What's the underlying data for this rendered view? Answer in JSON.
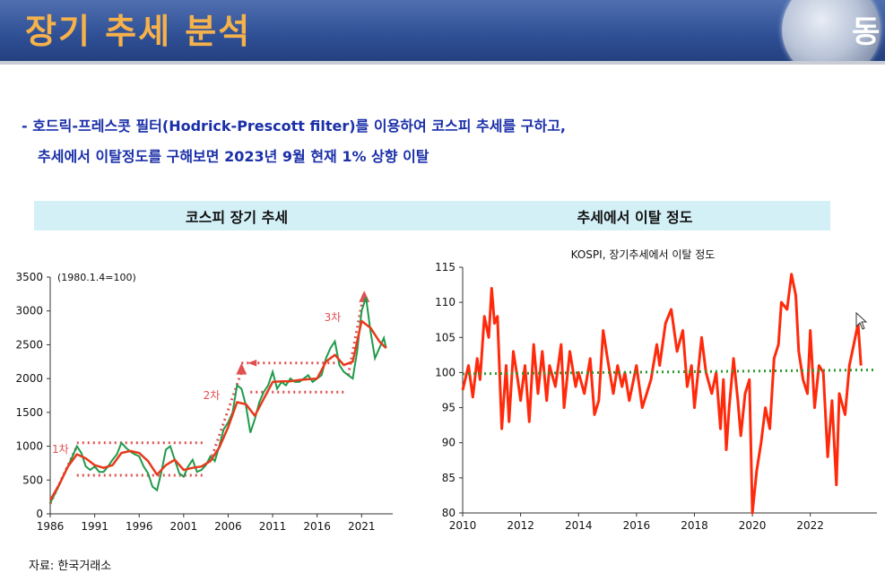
{
  "header": {
    "title": "장기 추세 분석",
    "logo_text": "동"
  },
  "bullet": {
    "line1": "- 호드릭-프레스콧 필터(Hodrick-Prescott filter)를 이용하여 코스피 추세를 구하고,",
    "line2": "추세에서 이탈정도를 구해보면 2023년 9월 현재 1% 상향 이탈"
  },
  "panels": {
    "left_header": "코스피 장기 추세",
    "right_header": "추세에서 이탈 정도"
  },
  "source": "자료: 한국거래소",
  "colors": {
    "title_text": "#f6b24a",
    "title_bar": "#2f4f95",
    "bullet_text": "#1a2fa8",
    "header_band": "#d3f0f6",
    "kospi": "#1f9a4a",
    "trend": "#e63a1c",
    "deviation": "#ff2a0c",
    "baseline": "#2f9a2f"
  },
  "chart_data": [
    {
      "type": "line",
      "title": "",
      "note": "(1980.1.4=100)",
      "x_ticks": [
        "1986",
        "1991",
        "1996",
        "2001",
        "2006",
        "2011",
        "2016",
        "2021"
      ],
      "y_ticks": [
        0,
        500,
        1000,
        1500,
        2000,
        2500,
        3000,
        3500
      ],
      "xlim": [
        1986,
        2024.5
      ],
      "ylim": [
        0,
        3500
      ],
      "annotations": [
        "1차",
        "2차",
        "3차"
      ],
      "series": [
        {
          "x": [
            1986,
            1987,
            1988,
            1989,
            1989.5,
            1990,
            1990.5,
            1991,
            1991.5,
            1992,
            1992.5,
            1993,
            1993.5,
            1994,
            1994.5,
            1995,
            1995.5,
            1996,
            1996.5,
            1997,
            1997.5,
            1998,
            1998.5,
            1999,
            1999.5,
            2000,
            2000.5,
            2001,
            2001.5,
            2002,
            2002.5,
            2003,
            2003.5,
            2004,
            2004.5,
            2005,
            2005.5,
            2006,
            2006.5,
            2007,
            2007.5,
            2008,
            2008.5,
            2009,
            2009.5,
            2010,
            2010.5,
            2011,
            2011.5,
            2012,
            2012.5,
            2013,
            2013.5,
            2014,
            2014.5,
            2015,
            2015.5,
            2016,
            2016.5,
            2017,
            2017.5,
            2018,
            2018.5,
            2019,
            2019.5,
            2020,
            2020.5,
            2021,
            2021.5,
            2022,
            2022.5,
            2023,
            2023.5,
            2023.75
          ],
          "values": [
            160,
            420,
            700,
            1000,
            900,
            700,
            650,
            700,
            620,
            620,
            700,
            800,
            880,
            1050,
            980,
            920,
            880,
            850,
            700,
            600,
            400,
            350,
            620,
            950,
            1000,
            800,
            600,
            550,
            700,
            800,
            620,
            650,
            720,
            850,
            780,
            1000,
            1250,
            1350,
            1500,
            1900,
            1850,
            1600,
            1200,
            1400,
            1650,
            1800,
            1900,
            2100,
            1850,
            1950,
            1900,
            2000,
            1950,
            1950,
            2000,
            2050,
            1950,
            2000,
            2050,
            2300,
            2450,
            2550,
            2200,
            2100,
            2050,
            2000,
            2400,
            3000,
            3200,
            2700,
            2300,
            2450,
            2600,
            2450
          ]
        },
        {
          "x": [
            1986,
            1987,
            1988,
            1989,
            1990,
            1991,
            1992,
            1993,
            1994,
            1995,
            1996,
            1997,
            1998,
            1999,
            2000,
            2001,
            2002,
            2003,
            2004,
            2005,
            2006,
            2007,
            2008,
            2009,
            2010,
            2011,
            2012,
            2013,
            2014,
            2015,
            2016,
            2017,
            2018,
            2019,
            2020,
            2021,
            2022,
            2023,
            2023.75
          ],
          "values": [
            200,
            430,
            700,
            880,
            820,
            720,
            680,
            720,
            900,
            930,
            900,
            780,
            580,
            720,
            800,
            650,
            680,
            700,
            780,
            980,
            1280,
            1650,
            1620,
            1450,
            1700,
            1950,
            1960,
            1960,
            1980,
            1990,
            2000,
            2250,
            2350,
            2200,
            2250,
            2850,
            2750,
            2550,
            2450
          ]
        }
      ]
    },
    {
      "type": "line",
      "title": "KOSPI, 장기추세에서 이탈 정도",
      "x_ticks": [
        "2010",
        "2012",
        "2014",
        "2016",
        "2018",
        "2020",
        "2022"
      ],
      "y_ticks": [
        80,
        85,
        90,
        95,
        100,
        105,
        110,
        115
      ],
      "xlim": [
        2010,
        2024.3
      ],
      "ylim": [
        80,
        115
      ],
      "baseline": 100,
      "series": [
        {
          "x": [
            2010.0,
            2010.2,
            2010.35,
            2010.5,
            2010.6,
            2010.75,
            2010.9,
            2011.0,
            2011.1,
            2011.2,
            2011.35,
            2011.5,
            2011.6,
            2011.75,
            2011.9,
            2012.0,
            2012.15,
            2012.3,
            2012.45,
            2012.6,
            2012.75,
            2012.9,
            2013.0,
            2013.2,
            2013.4,
            2013.5,
            2013.7,
            2013.9,
            2014.0,
            2014.2,
            2014.4,
            2014.55,
            2014.7,
            2014.85,
            2015.0,
            2015.2,
            2015.35,
            2015.5,
            2015.6,
            2015.75,
            2015.9,
            2016.0,
            2016.2,
            2016.35,
            2016.5,
            2016.7,
            2016.8,
            2017.0,
            2017.2,
            2017.4,
            2017.6,
            2017.75,
            2017.9,
            2018.0,
            2018.1,
            2018.25,
            2018.4,
            2018.6,
            2018.75,
            2018.9,
            2019.0,
            2019.1,
            2019.2,
            2019.35,
            2019.5,
            2019.6,
            2019.75,
            2019.9,
            2020.0,
            2020.15,
            2020.3,
            2020.45,
            2020.6,
            2020.75,
            2020.9,
            2021.0,
            2021.2,
            2021.35,
            2021.5,
            2021.6,
            2021.75,
            2021.9,
            2022.0,
            2022.15,
            2022.3,
            2022.45,
            2022.6,
            2022.75,
            2022.9,
            2023.0,
            2023.2,
            2023.35,
            2023.5,
            2023.65,
            2023.75
          ],
          "values": [
            97.5,
            101,
            96.5,
            102,
            99,
            108,
            105,
            112,
            107,
            108,
            92,
            101,
            93,
            103,
            99,
            96,
            101,
            93,
            104,
            97,
            103,
            96,
            101,
            98,
            104,
            95,
            103,
            98,
            100,
            97,
            102,
            94,
            96,
            106,
            102,
            97,
            101,
            98,
            100,
            96,
            99,
            101,
            95,
            97,
            99,
            104,
            101,
            107,
            109,
            103,
            106,
            98,
            101,
            95,
            99,
            105,
            100,
            97,
            100,
            92,
            99,
            89,
            95,
            102,
            96,
            91,
            97,
            99,
            80,
            86,
            90,
            95,
            92,
            102,
            104,
            110,
            109,
            114,
            111,
            103,
            99,
            97,
            106,
            95,
            101,
            100,
            88,
            96,
            84,
            97,
            94,
            101,
            104,
            107,
            101
          ]
        }
      ]
    }
  ]
}
